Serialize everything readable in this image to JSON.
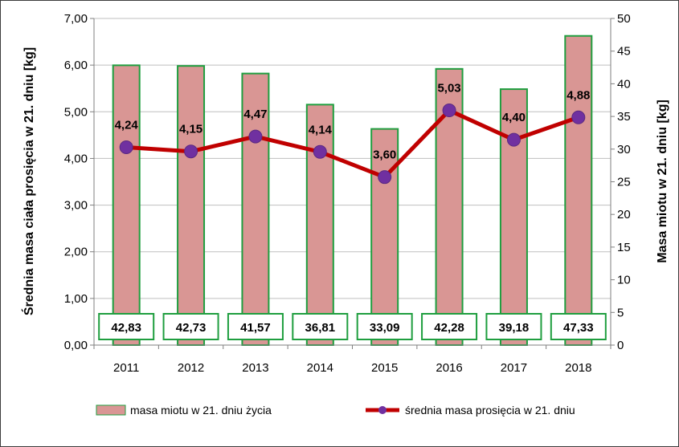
{
  "chart_data": {
    "type": "bar+line",
    "categories": [
      "2011",
      "2012",
      "2013",
      "2014",
      "2015",
      "2016",
      "2017",
      "2018"
    ],
    "series": [
      {
        "name": "masa miotu  w 21. dniu życia",
        "type": "bar",
        "axis": "right",
        "values": [
          42.83,
          42.73,
          41.57,
          36.81,
          33.09,
          42.28,
          39.18,
          47.33
        ],
        "labels": [
          "42,83",
          "42,73",
          "41,57",
          "36,81",
          "33,09",
          "42,28",
          "39,18",
          "47,33"
        ],
        "color": "#d99694",
        "border_color": "#1f9e3f"
      },
      {
        "name": "średnia masa prosięcia  w 21. dniu",
        "type": "line",
        "axis": "left",
        "values": [
          4.24,
          4.15,
          4.47,
          4.14,
          3.6,
          5.03,
          4.4,
          4.88
        ],
        "labels": [
          "4,24",
          "4,15",
          "4,47",
          "4,14",
          "3,60",
          "5,03",
          "4,40",
          "4,88"
        ],
        "color": "#c00000",
        "marker_color": "#7030a0"
      }
    ],
    "y_left": {
      "label": "Średnia masa ciała prosięcia w 21. dniu [kg]",
      "min": 0,
      "max": 7,
      "step": 1,
      "tick_labels": [
        "0,00",
        "1,00",
        "2,00",
        "3,00",
        "4,00",
        "5,00",
        "6,00",
        "7,00"
      ]
    },
    "y_right": {
      "label": "Masa miotu w 21. dniu [kg]",
      "min": 0,
      "max": 50,
      "step": 5,
      "tick_labels": [
        "0",
        "5",
        "10",
        "15",
        "20",
        "25",
        "30",
        "35",
        "40",
        "45",
        "50"
      ]
    },
    "gridlines": true,
    "legend_position": "bottom"
  }
}
